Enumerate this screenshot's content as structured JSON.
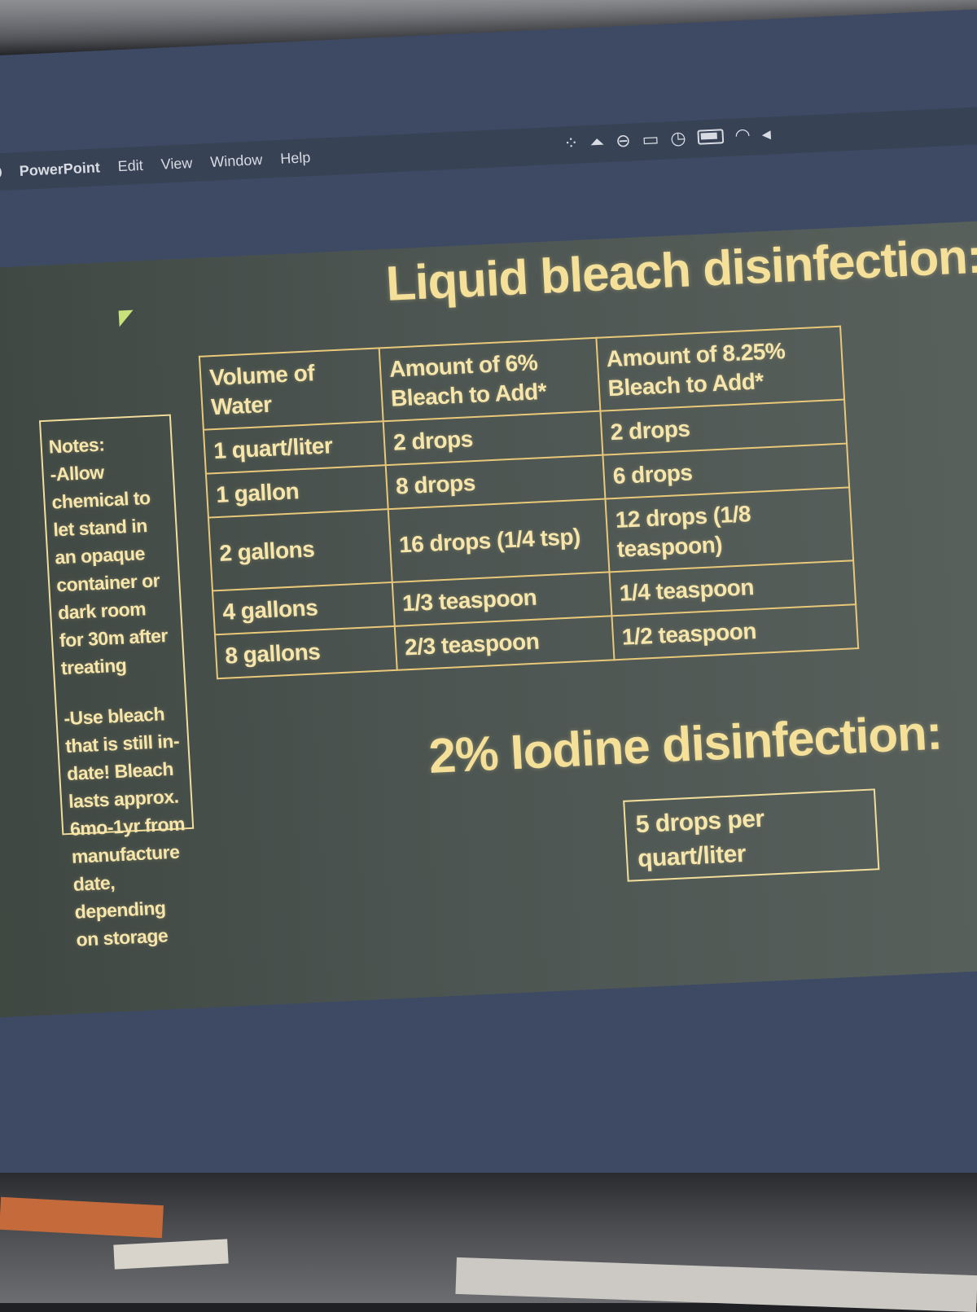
{
  "menubar": {
    "app_name": "PowerPoint",
    "items": [
      "Edit",
      "View",
      "Window",
      "Help"
    ]
  },
  "slide": {
    "title": "Liquid bleach disinfection:",
    "notes": {
      "heading": "Notes:",
      "point1": "-Allow chemical to let stand in an opaque container or dark room for 30m after treating",
      "point2": "-Use bleach that is still in-date! Bleach lasts approx. 6mo-1yr from manufacture date, depending on storage"
    },
    "table": {
      "headers": [
        "Volume of Water",
        "Amount of 6% Bleach to Add*",
        "Amount of 8.25% Bleach to Add*"
      ],
      "rows": [
        [
          "1 quart/liter",
          "2 drops",
          "2 drops"
        ],
        [
          "1 gallon",
          "8 drops",
          "6 drops"
        ],
        [
          "2 gallons",
          "16 drops (1/4 tsp)",
          "12 drops (1/8 teaspoon)"
        ],
        [
          "4 gallons",
          "1/3 teaspoon",
          "1/4 teaspoon"
        ],
        [
          "8 gallons",
          "2/3 teaspoon",
          "1/2 teaspoon"
        ]
      ]
    },
    "iodine_title": "2% Iodine disinfection:",
    "iodine_text": "5 drops per quart/liter"
  },
  "colors": {
    "slide_text": "#f6e6ac",
    "table_border": "#e9c979",
    "slide_bg": "#4b5450",
    "screen_bg": "#3e4a63"
  }
}
